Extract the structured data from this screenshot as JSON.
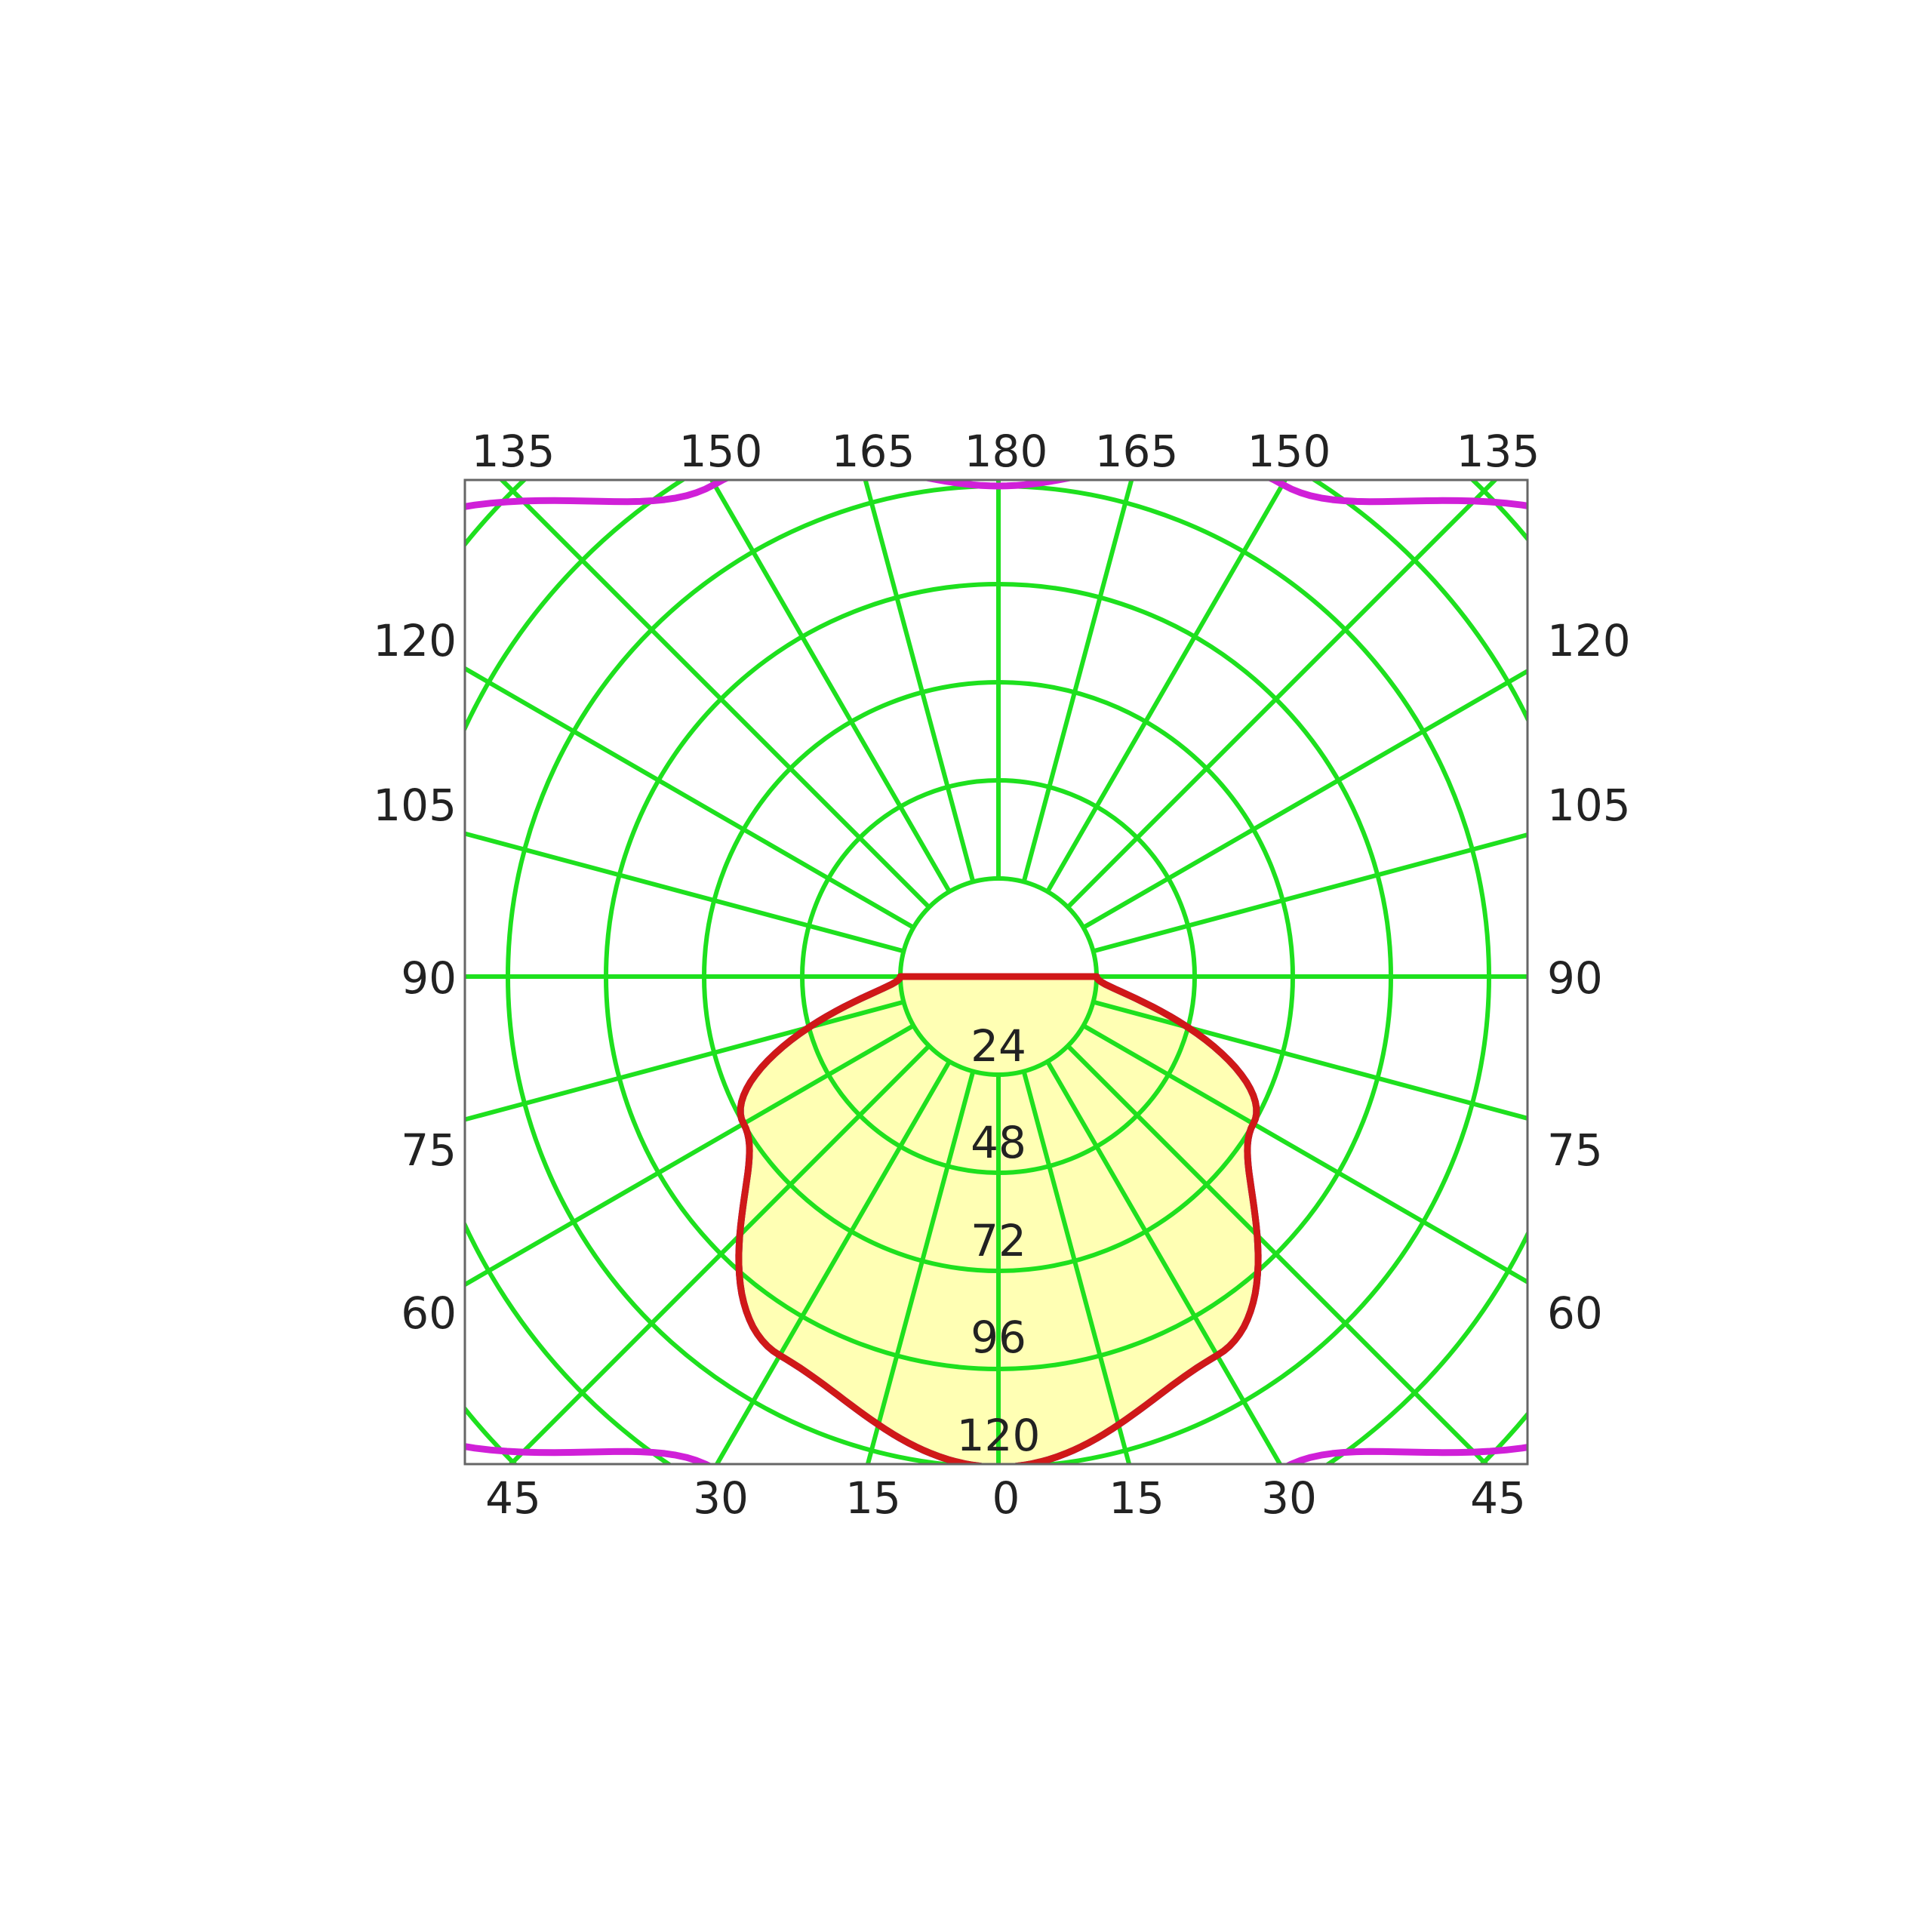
{
  "chart_data": {
    "type": "polar",
    "angle_labels": {
      "top": [
        "135",
        "150",
        "165",
        "180",
        "165",
        "150",
        "135"
      ],
      "bottom": [
        "45",
        "30",
        "15",
        "0",
        "15",
        "30",
        "45"
      ],
      "left": [
        "120",
        "105",
        "90",
        "75",
        "60"
      ],
      "right": [
        "120",
        "105",
        "90",
        "75",
        "60"
      ]
    },
    "radial_ticks": [
      "24",
      "48",
      "72",
      "96",
      "120"
    ],
    "radial_max": 120,
    "angle_step_deg": 15,
    "grid": true,
    "colors": {
      "grid": "#1ee01e",
      "fill": "#ffffb4",
      "frame": "#666666",
      "text": "#222222"
    },
    "series": [
      {
        "values": {
          "0": 96,
          "30": 83,
          "60": 48,
          "90": 0
        },
        "color": "#d01818",
        "fill": true
      },
      {
        "values": {
          "0": 96,
          "30": 83,
          "60": 48,
          "90": 0
        },
        "color": "#1010c8",
        "fill": false
      },
      {
        "values": {
          "0": 96,
          "30": 115,
          "60": 166,
          "90": 190,
          "120": 166,
          "150": 115,
          "180": 96
        },
        "color": "#d020d8",
        "fill": false
      }
    ]
  }
}
